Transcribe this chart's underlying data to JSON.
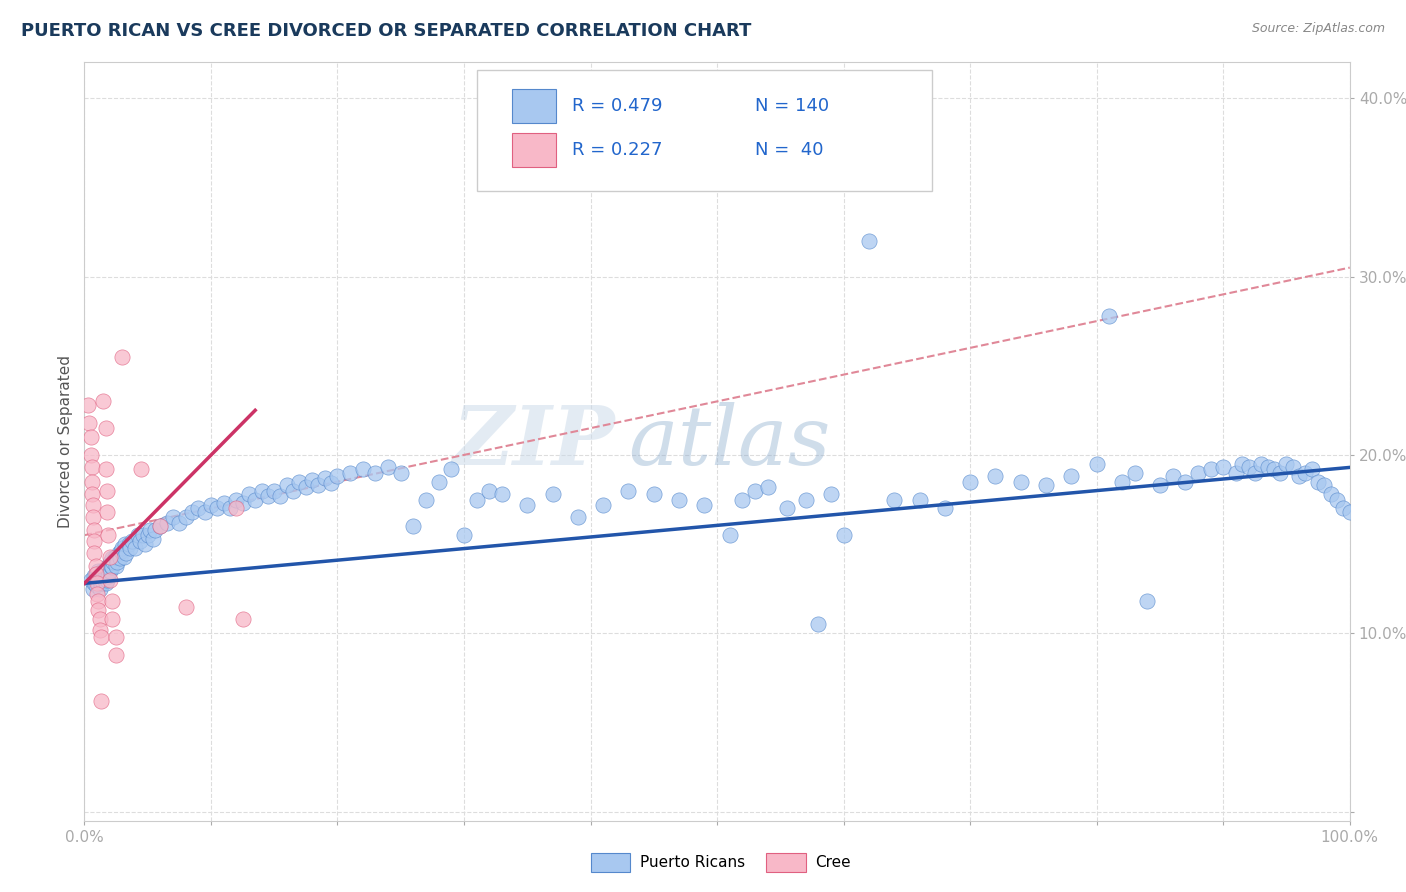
{
  "title": "PUERTO RICAN VS CREE DIVORCED OR SEPARATED CORRELATION CHART",
  "source_text": "Source: ZipAtlas.com",
  "ylabel": "Divorced or Separated",
  "xlim": [
    0.0,
    1.0
  ],
  "ylim": [
    -0.005,
    0.42
  ],
  "x_ticks": [
    0.0,
    0.1,
    0.2,
    0.3,
    0.4,
    0.5,
    0.6,
    0.7,
    0.8,
    0.9,
    1.0
  ],
  "y_ticks": [
    0.0,
    0.1,
    0.2,
    0.3,
    0.4
  ],
  "blue_color": "#a8c8f0",
  "blue_edge_color": "#5588cc",
  "blue_line_color": "#2255aa",
  "pink_color": "#f8b8c8",
  "pink_edge_color": "#e06080",
  "pink_line_color": "#cc3366",
  "dashed_color": "#e08898",
  "legend_text_color": "#2266cc",
  "title_color": "#1a3a5c",
  "source_color": "#888888",
  "ylabel_color": "#555555",
  "tick_color": "#3366bb",
  "background_color": "#ffffff",
  "grid_color": "#dddddd",
  "watermark_text": "ZIPatlas",
  "legend_label1": "Puerto Ricans",
  "legend_label2": "Cree",
  "blue_trendline_x": [
    0.0,
    1.0
  ],
  "blue_trendline_y": [
    0.128,
    0.193
  ],
  "pink_trendline_x": [
    0.0,
    0.135
  ],
  "pink_trendline_y": [
    0.128,
    0.225
  ],
  "dashed_line_x": [
    0.0,
    1.0
  ],
  "dashed_line_y": [
    0.155,
    0.305
  ],
  "blue_scatter": [
    [
      0.005,
      0.13
    ],
    [
      0.007,
      0.125
    ],
    [
      0.008,
      0.128
    ],
    [
      0.008,
      0.132
    ],
    [
      0.009,
      0.127
    ],
    [
      0.01,
      0.13
    ],
    [
      0.01,
      0.133
    ],
    [
      0.011,
      0.128
    ],
    [
      0.011,
      0.135
    ],
    [
      0.012,
      0.13
    ],
    [
      0.012,
      0.125
    ],
    [
      0.013,
      0.132
    ],
    [
      0.013,
      0.128
    ],
    [
      0.014,
      0.135
    ],
    [
      0.014,
      0.13
    ],
    [
      0.015,
      0.133
    ],
    [
      0.015,
      0.128
    ],
    [
      0.016,
      0.136
    ],
    [
      0.016,
      0.13
    ],
    [
      0.017,
      0.133
    ],
    [
      0.017,
      0.128
    ],
    [
      0.018,
      0.136
    ],
    [
      0.018,
      0.13
    ],
    [
      0.019,
      0.138
    ],
    [
      0.019,
      0.132
    ],
    [
      0.02,
      0.14
    ],
    [
      0.02,
      0.135
    ],
    [
      0.021,
      0.138
    ],
    [
      0.022,
      0.142
    ],
    [
      0.022,
      0.137
    ],
    [
      0.023,
      0.14
    ],
    [
      0.024,
      0.143
    ],
    [
      0.025,
      0.138
    ],
    [
      0.025,
      0.143
    ],
    [
      0.026,
      0.14
    ],
    [
      0.027,
      0.145
    ],
    [
      0.028,
      0.142
    ],
    [
      0.029,
      0.146
    ],
    [
      0.03,
      0.148
    ],
    [
      0.031,
      0.143
    ],
    [
      0.032,
      0.15
    ],
    [
      0.033,
      0.145
    ],
    [
      0.035,
      0.15
    ],
    [
      0.036,
      0.148
    ],
    [
      0.038,
      0.152
    ],
    [
      0.04,
      0.148
    ],
    [
      0.042,
      0.155
    ],
    [
      0.044,
      0.152
    ],
    [
      0.046,
      0.155
    ],
    [
      0.048,
      0.15
    ],
    [
      0.05,
      0.155
    ],
    [
      0.052,
      0.158
    ],
    [
      0.054,
      0.153
    ],
    [
      0.056,
      0.158
    ],
    [
      0.06,
      0.16
    ],
    [
      0.065,
      0.162
    ],
    [
      0.07,
      0.165
    ],
    [
      0.075,
      0.162
    ],
    [
      0.08,
      0.165
    ],
    [
      0.085,
      0.168
    ],
    [
      0.09,
      0.17
    ],
    [
      0.095,
      0.168
    ],
    [
      0.1,
      0.172
    ],
    [
      0.105,
      0.17
    ],
    [
      0.11,
      0.173
    ],
    [
      0.115,
      0.17
    ],
    [
      0.12,
      0.175
    ],
    [
      0.125,
      0.173
    ],
    [
      0.13,
      0.178
    ],
    [
      0.135,
      0.175
    ],
    [
      0.14,
      0.18
    ],
    [
      0.145,
      0.177
    ],
    [
      0.15,
      0.18
    ],
    [
      0.155,
      0.177
    ],
    [
      0.16,
      0.183
    ],
    [
      0.165,
      0.18
    ],
    [
      0.17,
      0.185
    ],
    [
      0.175,
      0.182
    ],
    [
      0.18,
      0.186
    ],
    [
      0.185,
      0.183
    ],
    [
      0.19,
      0.187
    ],
    [
      0.195,
      0.184
    ],
    [
      0.2,
      0.188
    ],
    [
      0.21,
      0.19
    ],
    [
      0.22,
      0.192
    ],
    [
      0.23,
      0.19
    ],
    [
      0.24,
      0.193
    ],
    [
      0.25,
      0.19
    ],
    [
      0.26,
      0.16
    ],
    [
      0.27,
      0.175
    ],
    [
      0.28,
      0.185
    ],
    [
      0.29,
      0.192
    ],
    [
      0.3,
      0.155
    ],
    [
      0.31,
      0.175
    ],
    [
      0.32,
      0.18
    ],
    [
      0.33,
      0.178
    ],
    [
      0.35,
      0.172
    ],
    [
      0.37,
      0.178
    ],
    [
      0.39,
      0.165
    ],
    [
      0.41,
      0.172
    ],
    [
      0.43,
      0.18
    ],
    [
      0.45,
      0.178
    ],
    [
      0.47,
      0.175
    ],
    [
      0.49,
      0.172
    ],
    [
      0.51,
      0.155
    ],
    [
      0.52,
      0.175
    ],
    [
      0.53,
      0.18
    ],
    [
      0.54,
      0.182
    ],
    [
      0.555,
      0.17
    ],
    [
      0.57,
      0.175
    ],
    [
      0.58,
      0.105
    ],
    [
      0.59,
      0.178
    ],
    [
      0.6,
      0.155
    ],
    [
      0.62,
      0.32
    ],
    [
      0.64,
      0.175
    ],
    [
      0.66,
      0.175
    ],
    [
      0.68,
      0.17
    ],
    [
      0.7,
      0.185
    ],
    [
      0.72,
      0.188
    ],
    [
      0.74,
      0.185
    ],
    [
      0.76,
      0.183
    ],
    [
      0.78,
      0.188
    ],
    [
      0.8,
      0.195
    ],
    [
      0.81,
      0.278
    ],
    [
      0.82,
      0.185
    ],
    [
      0.83,
      0.19
    ],
    [
      0.84,
      0.118
    ],
    [
      0.85,
      0.183
    ],
    [
      0.86,
      0.188
    ],
    [
      0.87,
      0.185
    ],
    [
      0.88,
      0.19
    ],
    [
      0.89,
      0.192
    ],
    [
      0.9,
      0.193
    ],
    [
      0.91,
      0.19
    ],
    [
      0.915,
      0.195
    ],
    [
      0.92,
      0.193
    ],
    [
      0.925,
      0.19
    ],
    [
      0.93,
      0.195
    ],
    [
      0.935,
      0.193
    ],
    [
      0.94,
      0.192
    ],
    [
      0.945,
      0.19
    ],
    [
      0.95,
      0.195
    ],
    [
      0.955,
      0.193
    ],
    [
      0.96,
      0.188
    ],
    [
      0.965,
      0.19
    ],
    [
      0.97,
      0.192
    ],
    [
      0.975,
      0.185
    ],
    [
      0.98,
      0.183
    ],
    [
      0.985,
      0.178
    ],
    [
      0.99,
      0.175
    ],
    [
      0.995,
      0.17
    ],
    [
      1.0,
      0.168
    ]
  ],
  "pink_scatter": [
    [
      0.003,
      0.228
    ],
    [
      0.004,
      0.218
    ],
    [
      0.005,
      0.21
    ],
    [
      0.005,
      0.2
    ],
    [
      0.006,
      0.193
    ],
    [
      0.006,
      0.185
    ],
    [
      0.006,
      0.178
    ],
    [
      0.007,
      0.172
    ],
    [
      0.007,
      0.165
    ],
    [
      0.008,
      0.158
    ],
    [
      0.008,
      0.152
    ],
    [
      0.008,
      0.145
    ],
    [
      0.009,
      0.138
    ],
    [
      0.009,
      0.133
    ],
    [
      0.01,
      0.128
    ],
    [
      0.01,
      0.122
    ],
    [
      0.011,
      0.118
    ],
    [
      0.011,
      0.113
    ],
    [
      0.012,
      0.108
    ],
    [
      0.012,
      0.102
    ],
    [
      0.013,
      0.098
    ],
    [
      0.013,
      0.062
    ],
    [
      0.015,
      0.23
    ],
    [
      0.017,
      0.215
    ],
    [
      0.017,
      0.192
    ],
    [
      0.018,
      0.18
    ],
    [
      0.018,
      0.168
    ],
    [
      0.019,
      0.155
    ],
    [
      0.02,
      0.143
    ],
    [
      0.02,
      0.13
    ],
    [
      0.022,
      0.118
    ],
    [
      0.022,
      0.108
    ],
    [
      0.025,
      0.098
    ],
    [
      0.025,
      0.088
    ],
    [
      0.03,
      0.255
    ],
    [
      0.045,
      0.192
    ],
    [
      0.06,
      0.16
    ],
    [
      0.08,
      0.115
    ],
    [
      0.12,
      0.17
    ],
    [
      0.125,
      0.108
    ]
  ]
}
